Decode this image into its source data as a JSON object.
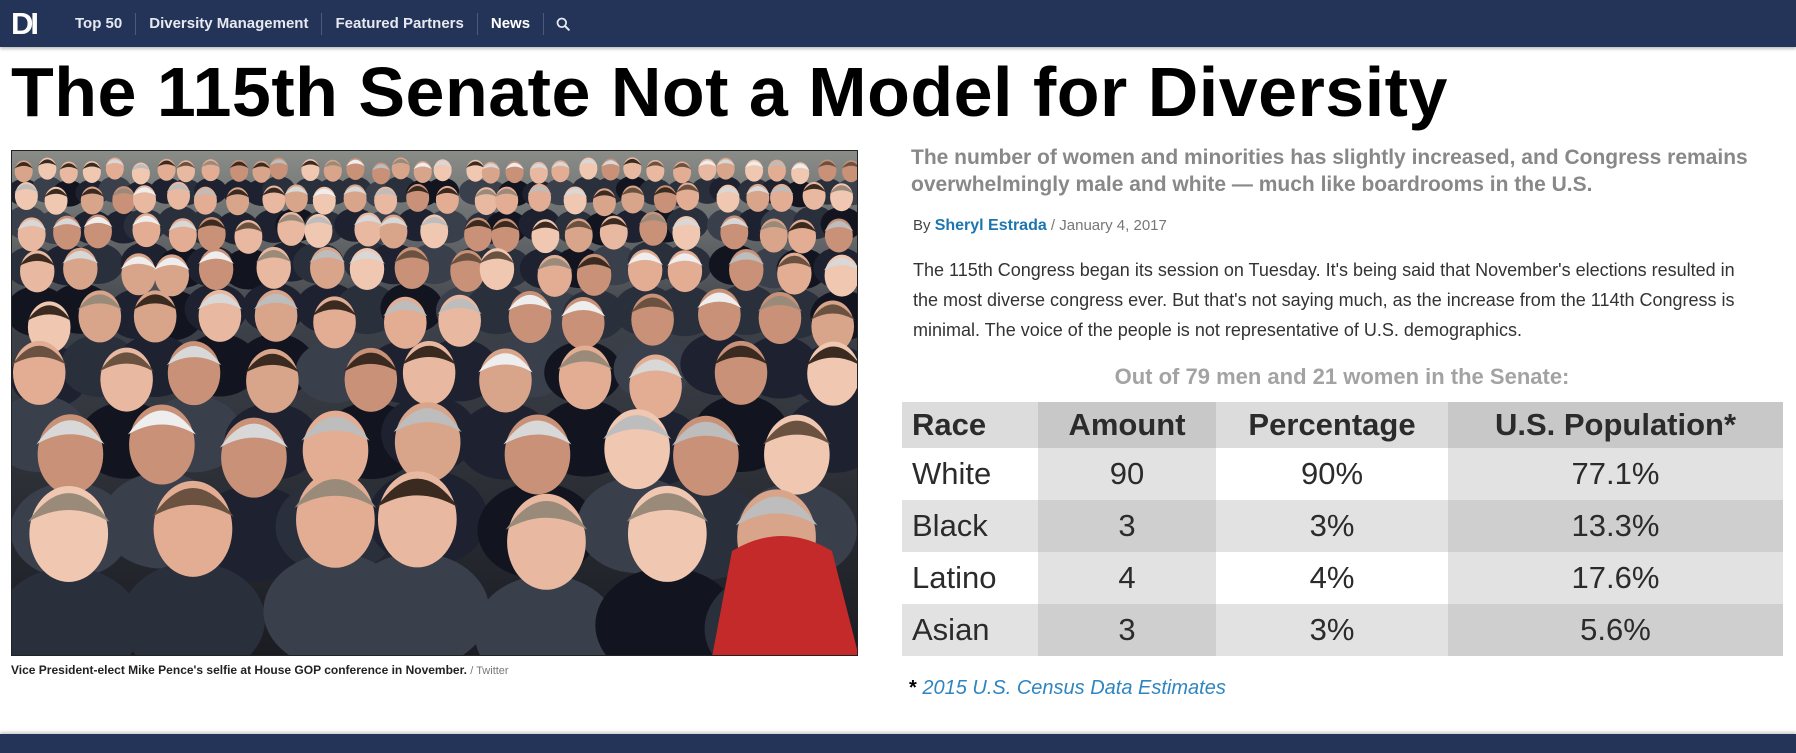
{
  "nav": {
    "logo": "DI",
    "items": [
      "Top 50",
      "Diversity Management",
      "Featured Partners",
      "News"
    ],
    "search_icon": "search-icon"
  },
  "article": {
    "title": "The 115th Senate Not a Model for Diversity",
    "deck": "The number of women and minorities has slightly increased, and Congress remains overwhelmingly male and white — much like boardrooms in the U.S.",
    "byline": {
      "by": "By",
      "author": "Sheryl Estrada",
      "separator": "/",
      "date": "January 4, 2017"
    },
    "body": "The 115th Congress began its session on Tuesday. It's being said that November's elections resulted in the most diverse congress ever. But that's not saying much, as the increase from the 114th Congress is minimal. The voice of the people is not representative of U.S. demographics.",
    "photo": {
      "caption": "Vice President-elect Mike Pence's selfie at House GOP conference in November.",
      "credit": "/ Twitter"
    }
  },
  "table": {
    "title": "Out of 79 men and 21 women in the Senate:",
    "headers": [
      "Race",
      "Amount",
      "Percentage",
      "U.S. Population*"
    ],
    "rows": [
      [
        "White",
        "90",
        "90%",
        "77.1%"
      ],
      [
        "Black",
        "3",
        "3%",
        "13.3%"
      ],
      [
        "Latino",
        "4",
        "4%",
        "17.6%"
      ],
      [
        "Asian",
        "3",
        "3%",
        "5.6%"
      ]
    ]
  },
  "footnote": {
    "star": "*",
    "link": "2015 U.S. Census Data Estimates"
  },
  "colors": {
    "nav_bg": "#243458",
    "link": "#1d75b0",
    "deck_gray": "#888888"
  }
}
